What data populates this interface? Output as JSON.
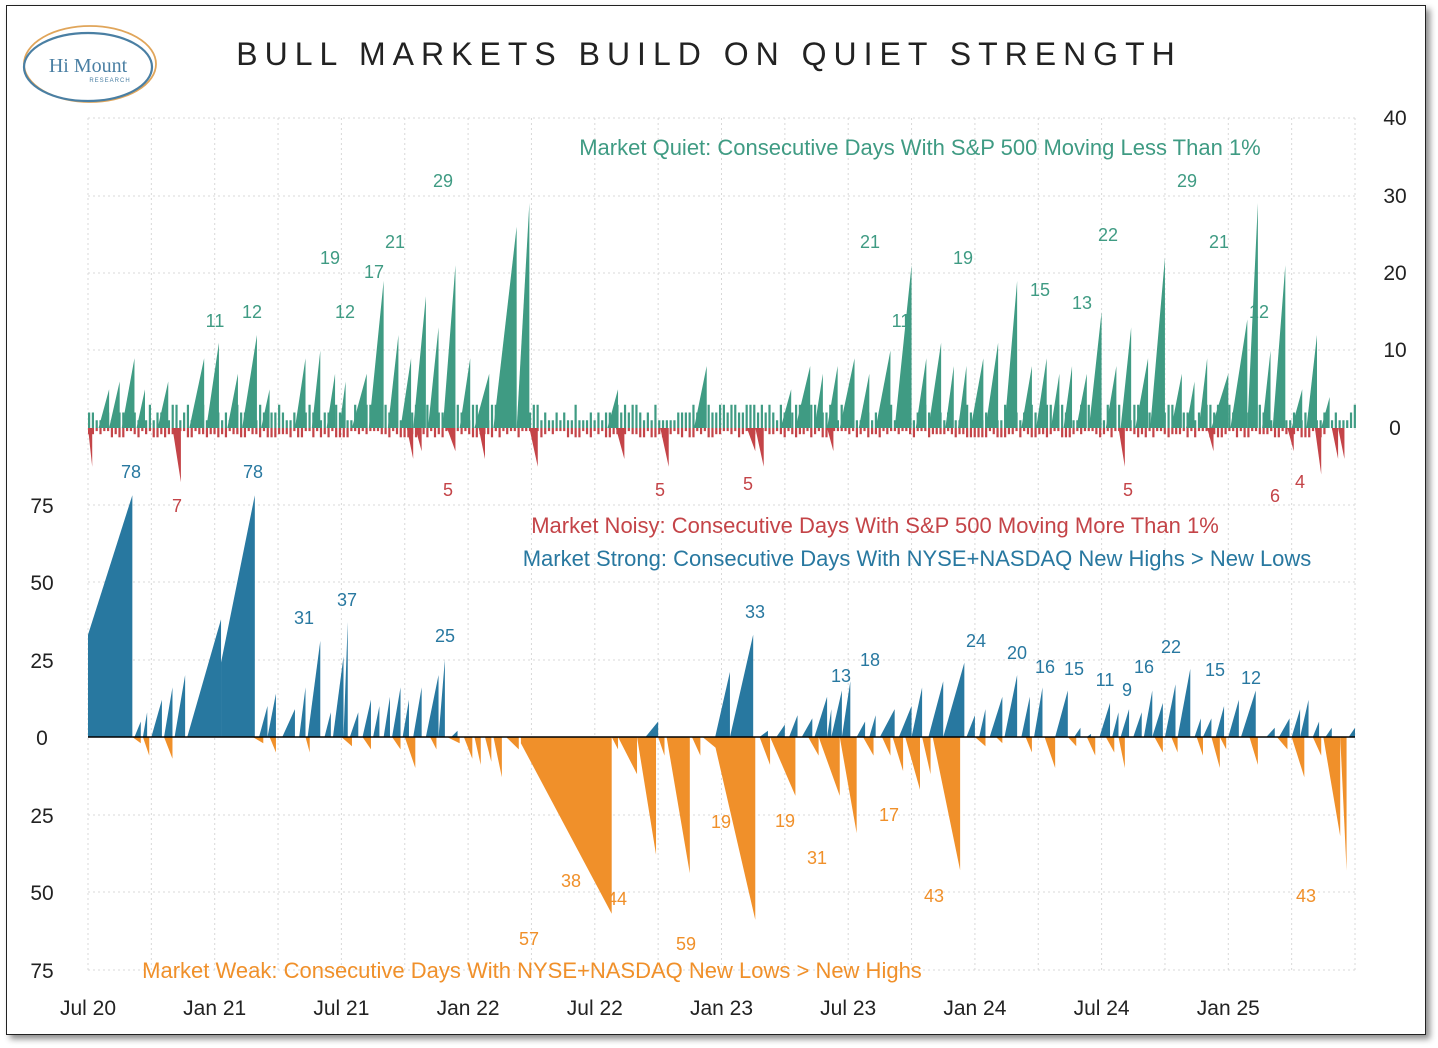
{
  "title": "BULL MARKETS BUILD ON QUIET STRENGTH",
  "logo": {
    "name": "Hi Mount",
    "sub": "RESEARCH"
  },
  "colors": {
    "quiet": "#3f9b83",
    "noisy": "#c44448",
    "strong": "#2878a0",
    "weak": "#f0902a",
    "logo": "#4a7fa3",
    "logo_ring": "#e0a55a"
  },
  "chart_data": [
    {
      "type": "area",
      "title": "Market Quiet: Consecutive Days With S&P 500 Moving Less Than 1%",
      "series_name": "Market Quiet",
      "ylim": [
        0,
        40
      ],
      "yticks": [
        "40",
        "30",
        "20",
        "10",
        "0"
      ],
      "peaks": [
        {
          "x": "Dec 20",
          "value": 11
        },
        {
          "x": "Feb 21",
          "value": 12
        },
        {
          "x": "Jun 21",
          "value": 19
        },
        {
          "x": "Jun 21",
          "value": 12
        },
        {
          "x": "Jul 21",
          "value": 17
        },
        {
          "x": "Aug 21",
          "value": 21
        },
        {
          "x": "Nov 21",
          "value": 29
        },
        {
          "x": "Jun 23",
          "value": 21
        },
        {
          "x": "Aug 23",
          "value": 11
        },
        {
          "x": "Nov 23",
          "value": 19
        },
        {
          "x": "Mar 24",
          "value": 15
        },
        {
          "x": "May 24",
          "value": 13
        },
        {
          "x": "Jul 24",
          "value": 22
        },
        {
          "x": "Oct 24",
          "value": 29
        },
        {
          "x": "Dec 24",
          "value": 21
        },
        {
          "x": "Mar 25",
          "value": 12
        }
      ]
    },
    {
      "type": "area",
      "title": "Market Noisy: Consecutive Days With S&P 500 Moving More Than 1%",
      "series_name": "Market Noisy",
      "troughs": [
        {
          "x": "Nov 20",
          "value": 7
        },
        {
          "x": "Dec 21",
          "value": 5
        },
        {
          "x": "Oct 22",
          "value": 5
        },
        {
          "x": "Jan 23",
          "value": 5
        },
        {
          "x": "Jul 24",
          "value": 5
        },
        {
          "x": "Apr 25",
          "value": 6
        },
        {
          "x": "Apr 25",
          "value": 4
        }
      ]
    },
    {
      "type": "area",
      "title": "Market Strong: Consecutive Days With NYSE+NASDAQ New Highs > New Lows",
      "series_name": "Market Strong",
      "ylim": [
        -75,
        75
      ],
      "yticks": [
        "75",
        "50",
        "25",
        "0",
        "25",
        "50",
        "75"
      ],
      "xticks": [
        "Jul 20",
        "Jan 21",
        "Jul 21",
        "Jan 22",
        "Jul 22",
        "Jan 23",
        "Jul 23",
        "Jan 24",
        "Jul 24",
        "Jan 25"
      ],
      "peaks": [
        {
          "x": "Sep 20",
          "value": 78
        },
        {
          "x": "Feb 21",
          "value": 78
        },
        {
          "x": "May 21",
          "value": 31
        },
        {
          "x": "Jul 21",
          "value": 37
        },
        {
          "x": "Nov 21",
          "value": 25
        },
        {
          "x": "Feb 23",
          "value": 33
        },
        {
          "x": "Jul 23",
          "value": 13
        },
        {
          "x": "Aug 23",
          "value": 18
        },
        {
          "x": "Jan 24",
          "value": 24
        },
        {
          "x": "Mar 24",
          "value": 20
        },
        {
          "x": "Apr 24",
          "value": 16
        },
        {
          "x": "May 24",
          "value": 15
        },
        {
          "x": "Jun 24",
          "value": 11
        },
        {
          "x": "Jul 24",
          "value": 9
        },
        {
          "x": "Aug 24",
          "value": 16
        },
        {
          "x": "Sep 24",
          "value": 22
        },
        {
          "x": "Nov 24",
          "value": 15
        },
        {
          "x": "Jan 25",
          "value": 12
        }
      ]
    },
    {
      "type": "area",
      "title": "Market Weak: Consecutive Days With NYSE+NASDAQ New Lows > New Highs",
      "series_name": "Market Weak",
      "troughs": [
        {
          "x": "Apr 22",
          "value": 57
        },
        {
          "x": "May 22",
          "value": 38
        },
        {
          "x": "Jun 22",
          "value": 44
        },
        {
          "x": "Oct 22",
          "value": 59
        },
        {
          "x": "Dec 22",
          "value": 19
        },
        {
          "x": "Mar 23",
          "value": 19
        },
        {
          "x": "Apr 23",
          "value": 31
        },
        {
          "x": "Sep 23",
          "value": 17
        },
        {
          "x": "Oct 23",
          "value": 43
        },
        {
          "x": "Apr 25",
          "value": 43
        }
      ]
    }
  ]
}
